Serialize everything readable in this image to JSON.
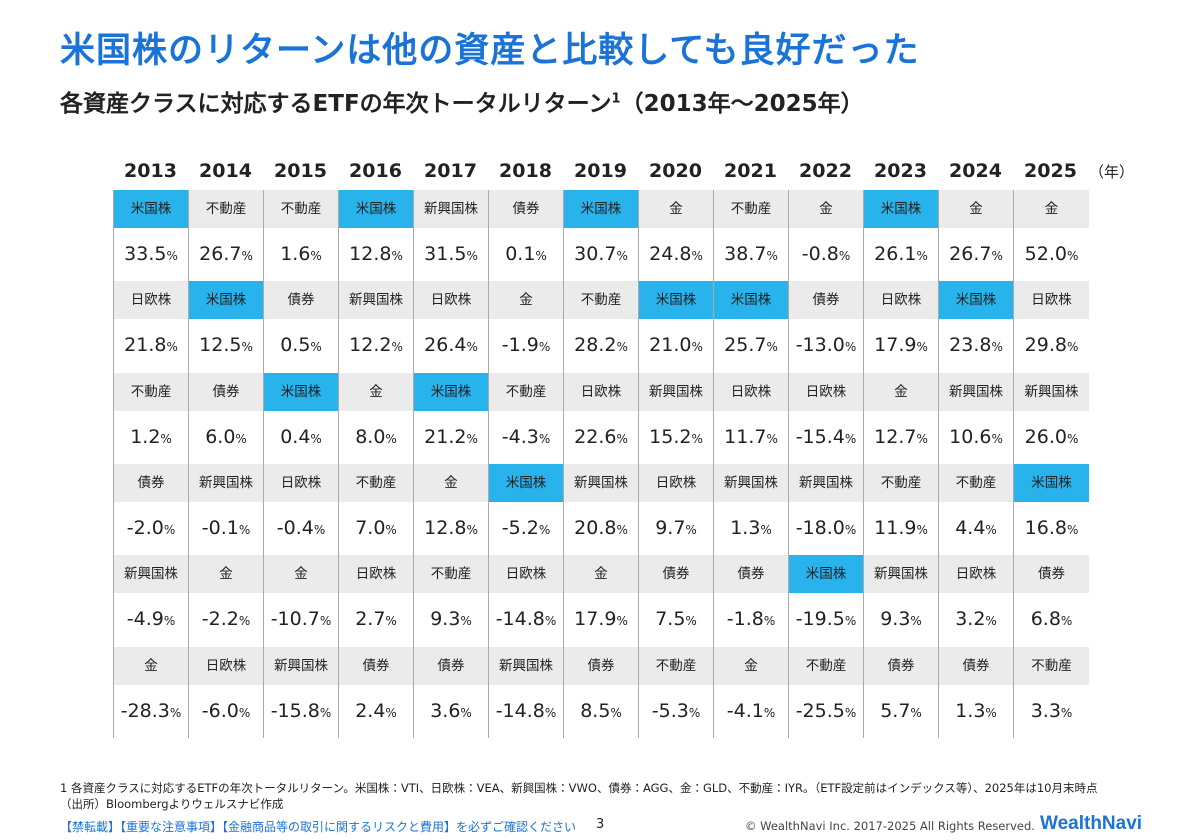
{
  "header": {
    "title": "米国株のリターンは他の資産と比較しても良好だった",
    "subtitle": "各資産クラスに対応するETFの年次トータルリターン",
    "subtitle_note": "1",
    "subtitle_range": "（2013年～2025年）"
  },
  "table": {
    "years": [
      "2013",
      "2014",
      "2015",
      "2016",
      "2017",
      "2018",
      "2019",
      "2020",
      "2021",
      "2022",
      "2023",
      "2024",
      "2025"
    ],
    "year_unit": "（年）",
    "highlight_color": "#29b3ec",
    "columns": [
      [
        {
          "asset": "米国株",
          "return": "33.5%",
          "highlight": true
        },
        {
          "asset": "日欧株",
          "return": "21.8%"
        },
        {
          "asset": "不動産",
          "return": "1.2%"
        },
        {
          "asset": "債券",
          "return": "-2.0%"
        },
        {
          "asset": "新興国株",
          "return": "-4.9%"
        },
        {
          "asset": "金",
          "return": "-28.3%"
        }
      ],
      [
        {
          "asset": "不動産",
          "return": "26.7%"
        },
        {
          "asset": "米国株",
          "return": "12.5%",
          "highlight": true
        },
        {
          "asset": "債券",
          "return": "6.0%"
        },
        {
          "asset": "新興国株",
          "return": "-0.1%"
        },
        {
          "asset": "金",
          "return": "-2.2%"
        },
        {
          "asset": "日欧株",
          "return": "-6.0%"
        }
      ],
      [
        {
          "asset": "不動産",
          "return": "1.6%"
        },
        {
          "asset": "債券",
          "return": "0.5%"
        },
        {
          "asset": "米国株",
          "return": "0.4%",
          "highlight": true
        },
        {
          "asset": "日欧株",
          "return": "-0.4%"
        },
        {
          "asset": "金",
          "return": "-10.7%"
        },
        {
          "asset": "新興国株",
          "return": "-15.8%"
        }
      ],
      [
        {
          "asset": "米国株",
          "return": "12.8%",
          "highlight": true
        },
        {
          "asset": "新興国株",
          "return": "12.2%"
        },
        {
          "asset": "金",
          "return": "8.0%"
        },
        {
          "asset": "不動産",
          "return": "7.0%"
        },
        {
          "asset": "日欧株",
          "return": "2.7%"
        },
        {
          "asset": "債券",
          "return": "2.4%"
        }
      ],
      [
        {
          "asset": "新興国株",
          "return": "31.5%"
        },
        {
          "asset": "日欧株",
          "return": "26.4%"
        },
        {
          "asset": "米国株",
          "return": "21.2%",
          "highlight": true
        },
        {
          "asset": "金",
          "return": "12.8%"
        },
        {
          "asset": "不動産",
          "return": "9.3%"
        },
        {
          "asset": "債券",
          "return": "3.6%"
        }
      ],
      [
        {
          "asset": "債券",
          "return": "0.1%"
        },
        {
          "asset": "金",
          "return": "-1.9%"
        },
        {
          "asset": "不動産",
          "return": "-4.3%"
        },
        {
          "asset": "米国株",
          "return": "-5.2%",
          "highlight": true
        },
        {
          "asset": "日欧株",
          "return": "-14.8%"
        },
        {
          "asset": "新興国株",
          "return": "-14.8%"
        }
      ],
      [
        {
          "asset": "米国株",
          "return": "30.7%",
          "highlight": true
        },
        {
          "asset": "不動産",
          "return": "28.2%"
        },
        {
          "asset": "日欧株",
          "return": "22.6%"
        },
        {
          "asset": "新興国株",
          "return": "20.8%"
        },
        {
          "asset": "金",
          "return": "17.9%"
        },
        {
          "asset": "債券",
          "return": "8.5%"
        }
      ],
      [
        {
          "asset": "金",
          "return": "24.8%"
        },
        {
          "asset": "米国株",
          "return": "21.0%",
          "highlight": true
        },
        {
          "asset": "新興国株",
          "return": "15.2%"
        },
        {
          "asset": "日欧株",
          "return": "9.7%"
        },
        {
          "asset": "債券",
          "return": "7.5%"
        },
        {
          "asset": "不動産",
          "return": "-5.3%"
        }
      ],
      [
        {
          "asset": "不動産",
          "return": "38.7%"
        },
        {
          "asset": "米国株",
          "return": "25.7%",
          "highlight": true
        },
        {
          "asset": "日欧株",
          "return": "11.7%"
        },
        {
          "asset": "新興国株",
          "return": "1.3%"
        },
        {
          "asset": "債券",
          "return": "-1.8%"
        },
        {
          "asset": "金",
          "return": "-4.1%"
        }
      ],
      [
        {
          "asset": "金",
          "return": "-0.8%"
        },
        {
          "asset": "債券",
          "return": "-13.0%"
        },
        {
          "asset": "日欧株",
          "return": "-15.4%"
        },
        {
          "asset": "新興国株",
          "return": "-18.0%"
        },
        {
          "asset": "米国株",
          "return": "-19.5%",
          "highlight": true
        },
        {
          "asset": "不動産",
          "return": "-25.5%"
        }
      ],
      [
        {
          "asset": "米国株",
          "return": "26.1%",
          "highlight": true
        },
        {
          "asset": "日欧株",
          "return": "17.9%"
        },
        {
          "asset": "金",
          "return": "12.7%"
        },
        {
          "asset": "不動産",
          "return": "11.9%"
        },
        {
          "asset": "新興国株",
          "return": "9.3%"
        },
        {
          "asset": "債券",
          "return": "5.7%"
        }
      ],
      [
        {
          "asset": "金",
          "return": "26.7%"
        },
        {
          "asset": "米国株",
          "return": "23.8%",
          "highlight": true
        },
        {
          "asset": "新興国株",
          "return": "10.6%"
        },
        {
          "asset": "不動産",
          "return": "4.4%"
        },
        {
          "asset": "日欧株",
          "return": "3.2%"
        },
        {
          "asset": "債券",
          "return": "1.3%"
        }
      ],
      [
        {
          "asset": "金",
          "return": "52.0%"
        },
        {
          "asset": "日欧株",
          "return": "29.8%"
        },
        {
          "asset": "新興国株",
          "return": "26.0%"
        },
        {
          "asset": "米国株",
          "return": "16.8%",
          "highlight": true
        },
        {
          "asset": "債券",
          "return": "6.8%"
        },
        {
          "asset": "不動産",
          "return": "3.3%"
        }
      ]
    ]
  },
  "footer": {
    "notes": [
      "1 各資産クラスに対応するETFの年次トータルリターン。米国株：VTI、日欧株：VEA、新興国株：VWO、債券：AGG、金：GLD、不動産：IYR。（ETF設定前はインデックス等）、2025年は10月末時点",
      "（出所）Bloombergよりウェルスナビ作成"
    ],
    "warning": "【禁転載】【重要な注意事項】【金融商品等の取引に関するリスクと費用】を必ずご確認ください",
    "page": "3",
    "copyright": "© WealthNavi Inc. 2017-2025 All Rights Reserved.",
    "logo": "WealthNavi"
  }
}
